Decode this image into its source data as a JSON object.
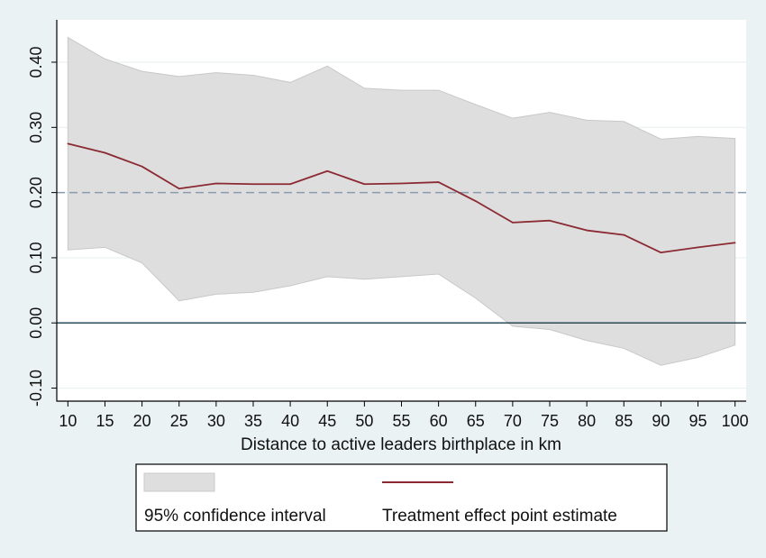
{
  "chart_data": {
    "type": "area",
    "title": "",
    "xlabel": "Distance to active leaders birthplace in km",
    "ylabel": "",
    "x": [
      10,
      15,
      20,
      25,
      30,
      35,
      40,
      45,
      50,
      55,
      60,
      65,
      70,
      75,
      80,
      85,
      90,
      95,
      100
    ],
    "xlim": [
      8.5,
      101.5
    ],
    "ylim": [
      -0.12,
      0.465
    ],
    "x_ticks": [
      "10",
      "15",
      "20",
      "25",
      "30",
      "35",
      "40",
      "45",
      "50",
      "55",
      "60",
      "65",
      "70",
      "75",
      "80",
      "85",
      "90",
      "95",
      "100"
    ],
    "y_ticks": [
      {
        "value": -0.1,
        "label": "-0.10"
      },
      {
        "value": 0.0,
        "label": "0.00"
      },
      {
        "value": 0.1,
        "label": "0.10"
      },
      {
        "value": 0.2,
        "label": "0.20"
      },
      {
        "value": 0.3,
        "label": "0.30"
      },
      {
        "value": 0.4,
        "label": "0.40"
      }
    ],
    "grid": true,
    "reference_lines": [
      {
        "y": 0.2,
        "style": "dashed",
        "color": "#8a9bb0"
      },
      {
        "y": 0.0,
        "style": "solid",
        "color": "#1d3b4a"
      }
    ],
    "series": [
      {
        "name": "95% confidence interval",
        "kind": "band",
        "color": "#dedede",
        "lower": [
          0.112,
          0.116,
          0.092,
          0.034,
          0.044,
          0.047,
          0.057,
          0.071,
          0.067,
          0.071,
          0.075,
          0.038,
          -0.005,
          -0.01,
          -0.027,
          -0.039,
          -0.065,
          -0.053,
          -0.034
        ],
        "upper": [
          0.438,
          0.405,
          0.386,
          0.378,
          0.384,
          0.38,
          0.369,
          0.394,
          0.36,
          0.357,
          0.357,
          0.335,
          0.314,
          0.323,
          0.311,
          0.309,
          0.282,
          0.286,
          0.283
        ]
      },
      {
        "name": "Treatment effect point estimate",
        "kind": "line",
        "color": "#8b2a33",
        "values": [
          0.275,
          0.261,
          0.24,
          0.206,
          0.214,
          0.213,
          0.213,
          0.233,
          0.213,
          0.214,
          0.216,
          0.187,
          0.154,
          0.157,
          0.142,
          0.135,
          0.108,
          0.116,
          0.123
        ]
      }
    ],
    "legend": {
      "placement": "bottom-center",
      "entries": [
        {
          "label": "95% confidence interval",
          "swatch": "area",
          "color": "#dedede"
        },
        {
          "label": "Treatment effect point estimate",
          "swatch": "line",
          "color": "#8b2a33"
        }
      ]
    },
    "colors": {
      "outer_background": "#eaf2f3",
      "plot_background": "#ffffff",
      "grid": "#e9f1f2",
      "axis": "#000000"
    }
  }
}
